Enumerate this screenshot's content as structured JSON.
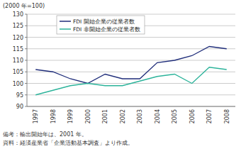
{
  "chart_data": {
    "type": "line",
    "y_label": "(2000 年=100)",
    "categories": [
      "1997",
      "1998",
      "1999",
      "2000",
      "2001",
      "2002",
      "2003",
      "2004",
      "2005",
      "2006",
      "2007",
      "2008"
    ],
    "series": [
      {
        "name": "FDI 開始企業の従業者数",
        "color": "#1f2d7a",
        "values": [
          106,
          105,
          102,
          100,
          104,
          102,
          102,
          109,
          110,
          112,
          116,
          115
        ]
      },
      {
        "name": "FDI 非開始企業の従業者数",
        "color": "#2bb39a",
        "values": [
          95,
          97,
          99,
          100,
          99,
          99,
          101,
          103,
          104,
          100,
          107,
          106
        ]
      }
    ],
    "ylim": [
      90,
      130
    ],
    "yticks": [
      90,
      95,
      100,
      105,
      110,
      115,
      120,
      125,
      130
    ],
    "grid": true,
    "legend": "upper left",
    "notes": [
      "備考：輸出開始年は、2001 年。",
      "資料：経済産業省「企業活動基本調査」より作成。"
    ]
  }
}
